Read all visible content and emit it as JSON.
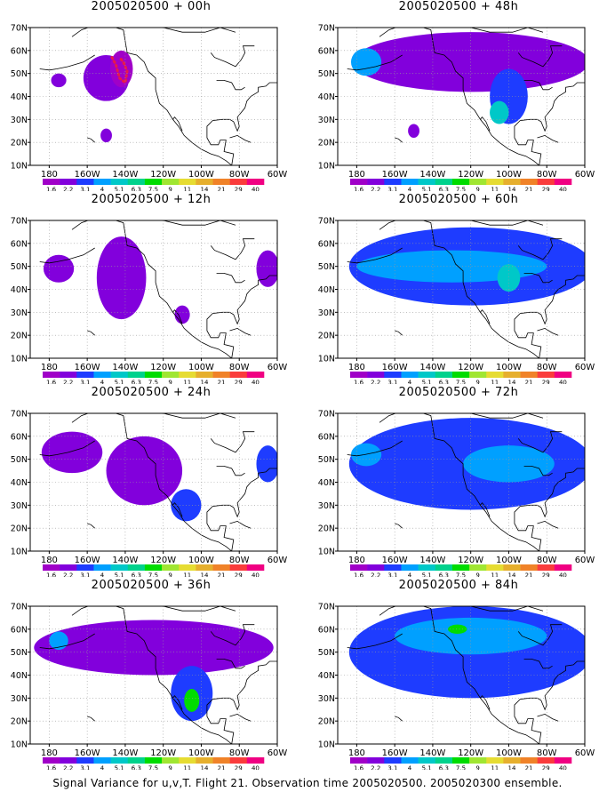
{
  "footer_caption": "Signal Variance for u,v,T. Flight 21. Observation time 2005020500. 2005020300 ensemble.",
  "shared": {
    "x_tick_labels": [
      "180",
      "160W",
      "140W",
      "120W",
      "100W",
      "80W",
      "60W"
    ],
    "y_tick_labels": [
      "10N",
      "20N",
      "30N",
      "40N",
      "50N",
      "60N",
      "70N"
    ],
    "colorbar_levels": [
      "1.6",
      "2.2",
      "3.1",
      "4",
      "5.1",
      "6.3",
      "7.5",
      "9",
      "11",
      "14",
      "21",
      "29",
      "40"
    ],
    "colorbar_colors": [
      "#a000c8",
      "#8200dc",
      "#1e3cff",
      "#00a0ff",
      "#00c8c8",
      "#00d28c",
      "#00dc00",
      "#a0e632",
      "#e6dc32",
      "#e6af2d",
      "#f08228",
      "#fa3c3c",
      "#f00082"
    ]
  },
  "chart_data": [
    {
      "type": "heatmap",
      "title": "2005020500 + 00h",
      "xlim": [
        "180",
        "60W"
      ],
      "ylim": [
        "10N",
        "70N"
      ],
      "blobs": [
        {
          "lon": -150,
          "lat": 48,
          "rx": 12,
          "ry": 10,
          "level": 1
        },
        {
          "lon": -175,
          "lat": 47,
          "rx": 4,
          "ry": 3,
          "level": 1
        },
        {
          "lon": -150,
          "lat": 23,
          "rx": 3,
          "ry": 3,
          "level": 1
        },
        {
          "lon": -142,
          "lat": 52,
          "rx": 6,
          "ry": 8,
          "level": 0
        }
      ],
      "observations": "red-dotted-flight-track"
    },
    {
      "type": "heatmap",
      "title": "2005020500 + 48h",
      "xlim": [
        "180",
        "60W"
      ],
      "ylim": [
        "10N",
        "70N"
      ],
      "blobs": [
        {
          "lon": -120,
          "lat": 55,
          "rx": 62,
          "ry": 13,
          "level": 1
        },
        {
          "lon": -175,
          "lat": 55,
          "rx": 8,
          "ry": 6,
          "level": 3
        },
        {
          "lon": -100,
          "lat": 40,
          "rx": 10,
          "ry": 12,
          "level": 2
        },
        {
          "lon": -105,
          "lat": 33,
          "rx": 5,
          "ry": 5,
          "level": 4
        },
        {
          "lon": -150,
          "lat": 25,
          "rx": 3,
          "ry": 3,
          "level": 1
        }
      ]
    },
    {
      "type": "heatmap",
      "title": "2005020500 + 12h",
      "xlim": [
        "180",
        "60W"
      ],
      "ylim": [
        "10N",
        "70N"
      ],
      "blobs": [
        {
          "lon": -175,
          "lat": 49,
          "rx": 8,
          "ry": 6,
          "level": 1
        },
        {
          "lon": -142,
          "lat": 45,
          "rx": 13,
          "ry": 18,
          "level": 1
        },
        {
          "lon": -110,
          "lat": 29,
          "rx": 4,
          "ry": 4,
          "level": 1
        },
        {
          "lon": -65,
          "lat": 49,
          "rx": 6,
          "ry": 8,
          "level": 1
        }
      ]
    },
    {
      "type": "heatmap",
      "title": "2005020500 + 60h",
      "xlim": [
        "180",
        "60W"
      ],
      "ylim": [
        "10N",
        "70N"
      ],
      "blobs": [
        {
          "lon": -120,
          "lat": 50,
          "rx": 64,
          "ry": 17,
          "level": 2
        },
        {
          "lon": -130,
          "lat": 50,
          "rx": 50,
          "ry": 7,
          "level": 3
        },
        {
          "lon": -100,
          "lat": 45,
          "rx": 6,
          "ry": 6,
          "level": 4
        }
      ]
    },
    {
      "type": "heatmap",
      "title": "2005020500 + 24h",
      "xlim": [
        "180",
        "60W"
      ],
      "ylim": [
        "10N",
        "70N"
      ],
      "blobs": [
        {
          "lon": -168,
          "lat": 53,
          "rx": 16,
          "ry": 9,
          "level": 1
        },
        {
          "lon": -130,
          "lat": 45,
          "rx": 20,
          "ry": 15,
          "level": 1
        },
        {
          "lon": -108,
          "lat": 30,
          "rx": 8,
          "ry": 7,
          "level": 2
        },
        {
          "lon": -65,
          "lat": 48,
          "rx": 6,
          "ry": 8,
          "level": 2
        }
      ]
    },
    {
      "type": "heatmap",
      "title": "2005020500 + 72h",
      "xlim": [
        "180",
        "60W"
      ],
      "ylim": [
        "10N",
        "70N"
      ],
      "blobs": [
        {
          "lon": -120,
          "lat": 48,
          "rx": 64,
          "ry": 20,
          "level": 2
        },
        {
          "lon": -100,
          "lat": 48,
          "rx": 24,
          "ry": 8,
          "level": 3
        },
        {
          "lon": -175,
          "lat": 52,
          "rx": 8,
          "ry": 5,
          "level": 3
        }
      ]
    },
    {
      "type": "heatmap",
      "title": "2005020500 + 36h",
      "xlim": [
        "180",
        "60W"
      ],
      "ylim": [
        "10N",
        "70N"
      ],
      "blobs": [
        {
          "lon": -125,
          "lat": 52,
          "rx": 63,
          "ry": 12,
          "level": 1
        },
        {
          "lon": -105,
          "lat": 32,
          "rx": 11,
          "ry": 12,
          "level": 2
        },
        {
          "lon": -105,
          "lat": 29,
          "rx": 4,
          "ry": 5,
          "level": 6
        },
        {
          "lon": -175,
          "lat": 55,
          "rx": 5,
          "ry": 4,
          "level": 3
        }
      ]
    },
    {
      "type": "heatmap",
      "title": "2005020500 + 84h",
      "xlim": [
        "180",
        "60W"
      ],
      "ylim": [
        "10N",
        "70N"
      ],
      "blobs": [
        {
          "lon": -120,
          "lat": 50,
          "rx": 64,
          "ry": 20,
          "level": 2
        },
        {
          "lon": -120,
          "lat": 57,
          "rx": 40,
          "ry": 8,
          "level": 3
        },
        {
          "lon": -127,
          "lat": 60,
          "rx": 5,
          "ry": 2,
          "level": 6
        }
      ]
    }
  ]
}
